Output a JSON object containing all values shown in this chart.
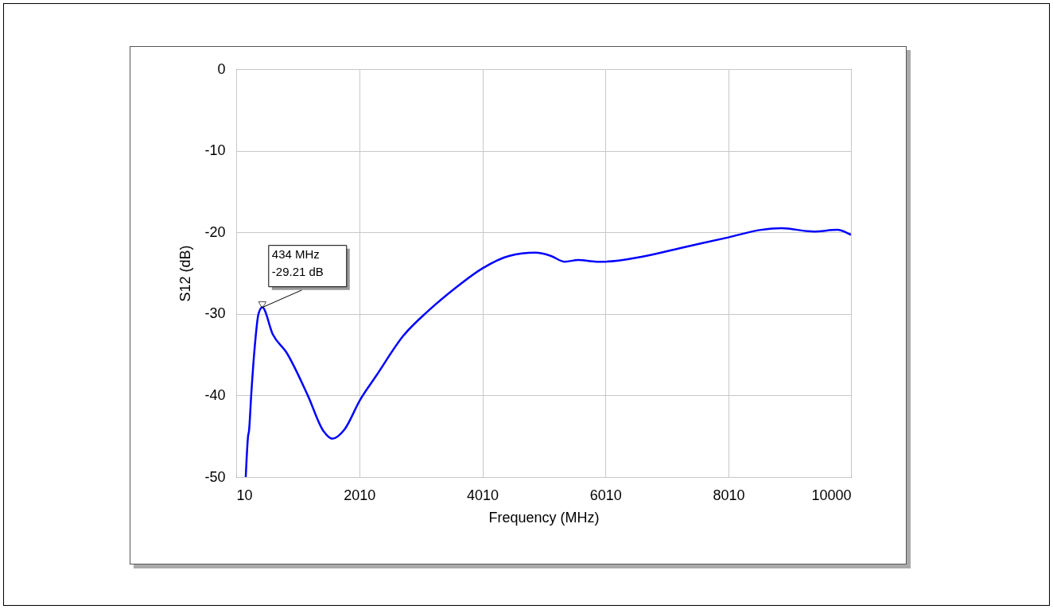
{
  "chart_data": {
    "type": "line",
    "xlabel": "Frequency (MHz)",
    "ylabel": "S12 (dB)",
    "x": [
      165,
      204,
      217,
      255,
      307,
      372,
      434,
      604,
      824,
      1173,
      1431,
      1573,
      1767,
      2026,
      2284,
      2723,
      3150,
      3576,
      4015,
      4442,
      4868,
      5127,
      5346,
      5566,
      5863,
      5992,
      6599,
      7245,
      8020,
      8537,
      8873,
      9390,
      9778,
      9972,
      10000
    ],
    "series": [
      {
        "color": "#0000ff",
        "values": [
          -50,
          -44.9,
          -44.4,
          -39.8,
          -34.4,
          -30,
          -29.2,
          -32.5,
          -34.7,
          -40,
          -44.4,
          -45.3,
          -44.2,
          -40.5,
          -37.6,
          -32.7,
          -29.5,
          -26.8,
          -24.4,
          -22.9,
          -22.5,
          -22.9,
          -23.6,
          -23.4,
          -23.6,
          -23.6,
          -23,
          -21.9,
          -20.6,
          -19.7,
          -19.5,
          -19.9,
          -19.7,
          -20.2,
          -20.3
        ]
      }
    ],
    "xlim": [
      10,
      10000
    ],
    "xticks": [
      10,
      2010,
      4010,
      6010,
      8010,
      10000
    ],
    "ylim": [
      -50,
      0
    ],
    "yticks": [
      -50,
      -40,
      -30,
      -20,
      -10,
      0
    ],
    "grid": true,
    "line_style": "solid",
    "marker": "none",
    "annotations": [
      {
        "text": "434 MHz\n-29.21 dB",
        "x": 434,
        "y": -29.21
      }
    ]
  }
}
